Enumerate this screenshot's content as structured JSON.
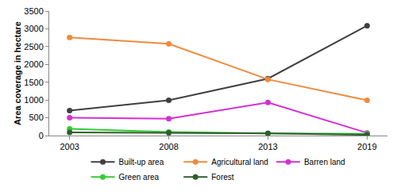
{
  "chart_data": {
    "type": "line",
    "y_label": "Area coverage in hectare",
    "categories": [
      "2003",
      "2008",
      "2013",
      "2019"
    ],
    "series": [
      {
        "name": "Built-up area",
        "color": "#404040",
        "values": [
          700,
          990,
          1600,
          3090
        ]
      },
      {
        "name": "Agricultural land",
        "color": "#f08a3c",
        "values": [
          2760,
          2580,
          1580,
          990
        ]
      },
      {
        "name": "Barren land",
        "color": "#d42fd4",
        "values": [
          500,
          475,
          930,
          75
        ]
      },
      {
        "name": "Green area",
        "color": "#33cc33",
        "values": [
          190,
          100,
          60,
          50
        ]
      },
      {
        "name": "Forest",
        "color": "#2e5e2e",
        "values": [
          90,
          80,
          60,
          20
        ]
      }
    ],
    "ylim": [
      0,
      3500
    ],
    "yticks": [
      0,
      500,
      1000,
      1500,
      2000,
      2500,
      3000,
      3500
    ],
    "grid": false,
    "legend": "bottom",
    "marker": "circle"
  }
}
